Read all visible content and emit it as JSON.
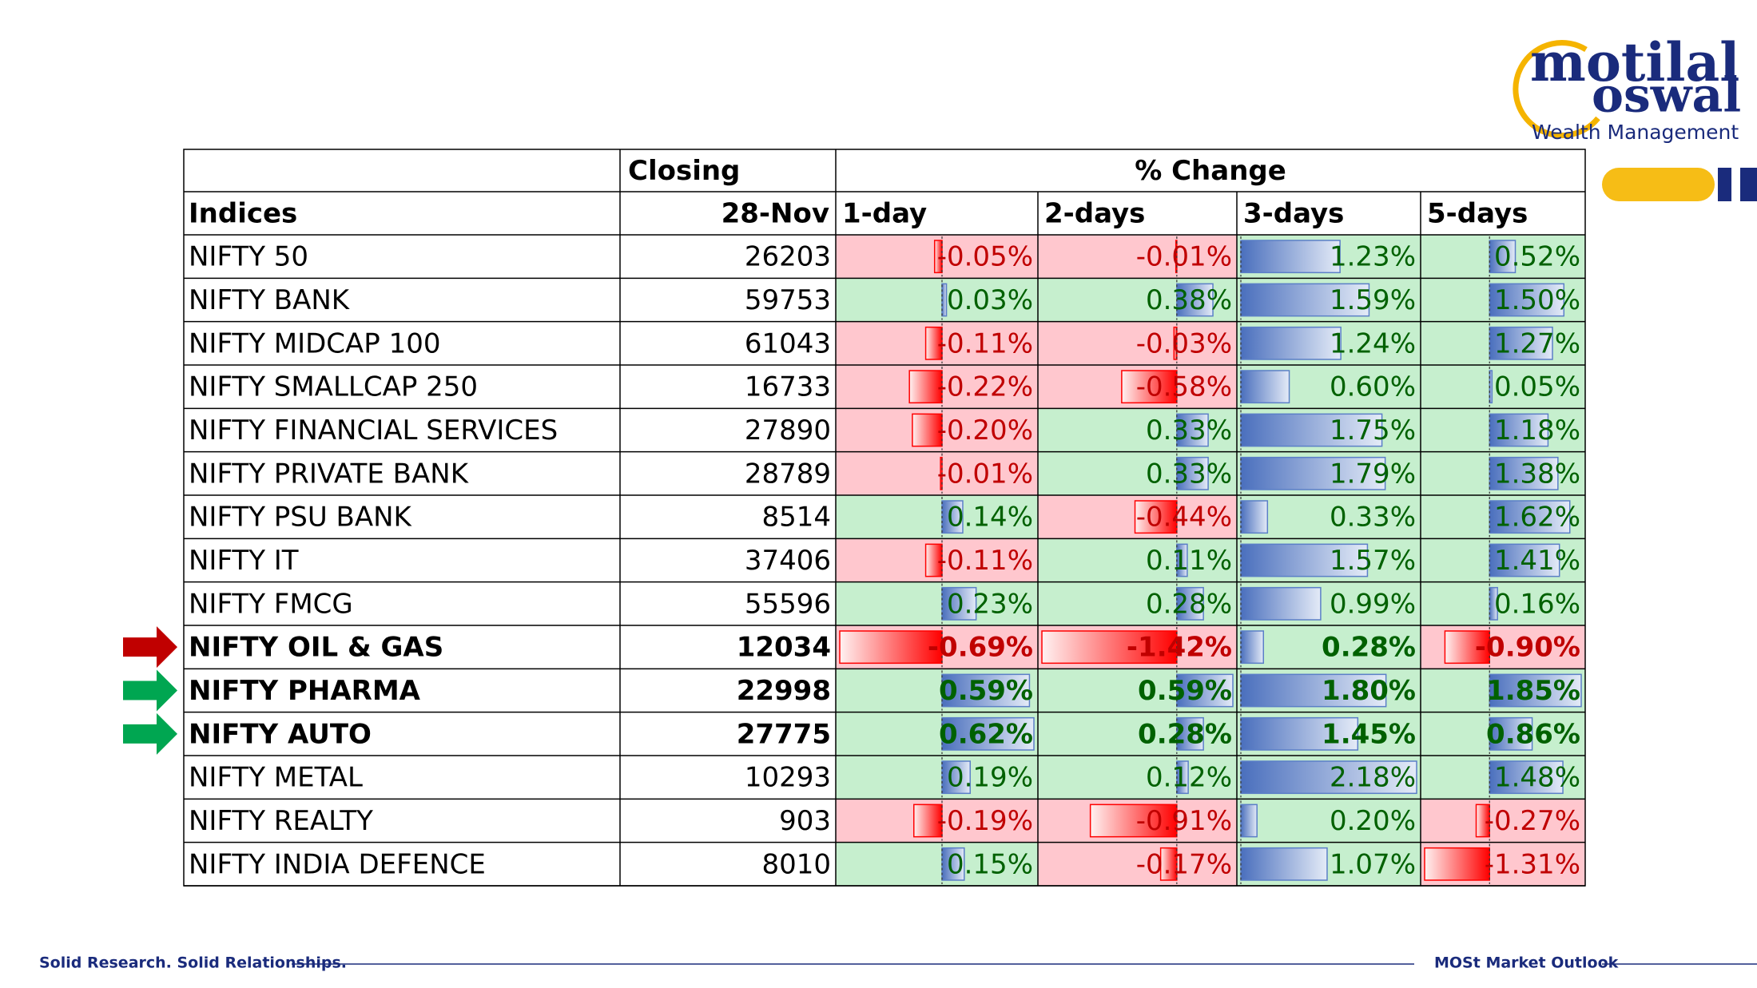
{
  "logo": {
    "line1": "motilal",
    "line2": "oswal",
    "tagline": "Wealth Management"
  },
  "table": {
    "headers": {
      "closing": "Closing",
      "change": "% Change",
      "indices": "Indices",
      "date": "28-Nov",
      "periods": [
        "1-day",
        "2-days",
        "3-days",
        "5-days"
      ]
    },
    "rows": [
      {
        "cells": [
          "NIFTY 50",
          "26203",
          "-0.05%",
          "-0.01%",
          "1.23%",
          "0.52%"
        ]
      },
      {
        "cells": [
          "NIFTY BANK",
          "59753",
          "0.03%",
          "0.38%",
          "1.59%",
          "1.50%"
        ]
      },
      {
        "cells": [
          "NIFTY MIDCAP 100",
          "61043",
          "-0.11%",
          "-0.03%",
          "1.24%",
          "1.27%"
        ]
      },
      {
        "cells": [
          "NIFTY SMALLCAP 250",
          "16733",
          "-0.22%",
          "-0.58%",
          "0.60%",
          "0.05%"
        ]
      },
      {
        "cells": [
          "NIFTY FINANCIAL SERVICES",
          "27890",
          "-0.20%",
          "0.33%",
          "1.75%",
          "1.18%"
        ]
      },
      {
        "cells": [
          "NIFTY PRIVATE BANK",
          "28789",
          "-0.01%",
          "0.33%",
          "1.79%",
          "1.38%"
        ]
      },
      {
        "cells": [
          "NIFTY PSU BANK",
          "8514",
          "0.14%",
          "-0.44%",
          "0.33%",
          "1.62%"
        ]
      },
      {
        "cells": [
          "NIFTY IT",
          "37406",
          "-0.11%",
          "0.11%",
          "1.57%",
          "1.41%"
        ]
      },
      {
        "cells": [
          "NIFTY FMCG",
          "55596",
          "0.23%",
          "0.28%",
          "0.99%",
          "0.16%"
        ]
      },
      {
        "cells": [
          "NIFTY OIL & GAS",
          "12034",
          "-0.69%",
          "-1.42%",
          "0.28%",
          "-0.90%"
        ],
        "arrow": "#c00000"
      },
      {
        "cells": [
          "NIFTY PHARMA",
          "22998",
          "0.59%",
          "0.59%",
          "1.80%",
          "1.85%"
        ],
        "arrow": "#00a651"
      },
      {
        "cells": [
          "NIFTY AUTO",
          "27775",
          "0.62%",
          "0.28%",
          "1.45%",
          "0.86%"
        ],
        "arrow": "#00a651"
      },
      {
        "cells": [
          "NIFTY METAL",
          "10293",
          "0.19%",
          "0.12%",
          "2.18%",
          "1.48%"
        ]
      },
      {
        "cells": [
          "NIFTY REALTY",
          "903",
          "-0.19%",
          "-0.91%",
          "0.20%",
          "-0.27%"
        ]
      },
      {
        "cells": [
          "NIFTY INDIA DEFENCE",
          "8010",
          "0.15%",
          "-0.17%",
          "1.07%",
          "-1.31%"
        ]
      }
    ]
  },
  "footer": {
    "left": "Solid Research. Solid Relationships.",
    "right": "MOSt Market Outlook"
  }
}
